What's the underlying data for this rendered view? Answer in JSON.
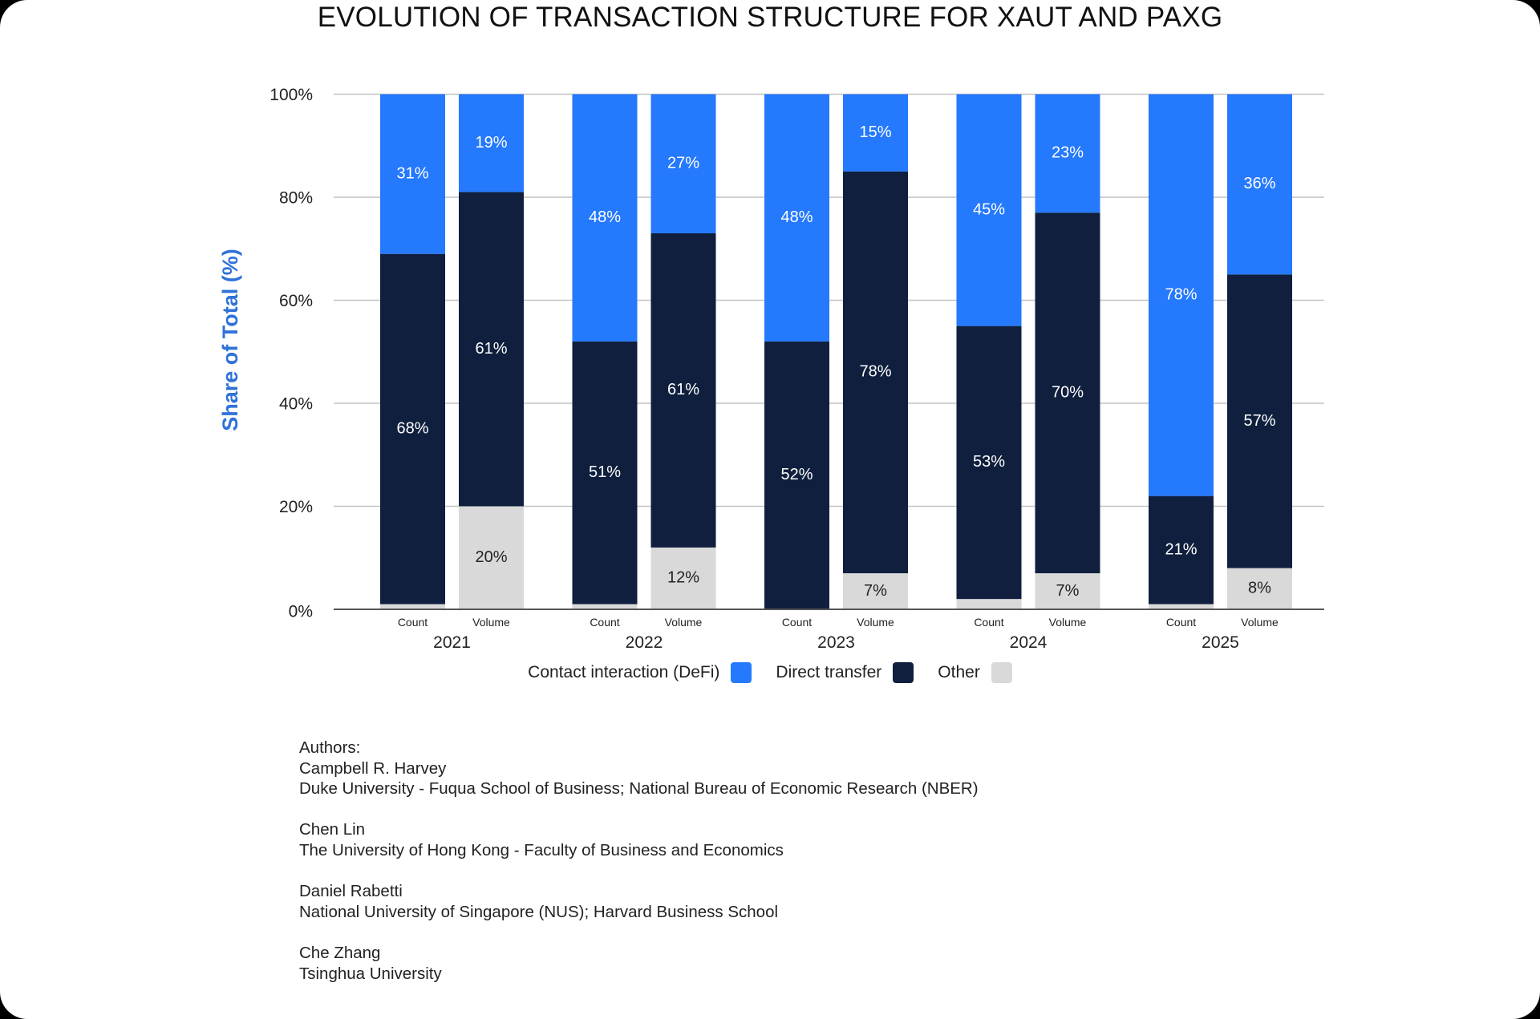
{
  "chart_data": {
    "type": "bar",
    "stacked": true,
    "title": "EVOLUTION OF TRANSACTION STRUCTURE FOR XAUT AND PAXG",
    "ylabel": "Share of Total (%)",
    "xlabel": "",
    "ylim": [
      0,
      100
    ],
    "yticks": [
      "0%",
      "20%",
      "40%",
      "60%",
      "80%",
      "100%"
    ],
    "grid": true,
    "legend_position": "bottom",
    "years": [
      "2021",
      "2022",
      "2023",
      "2024",
      "2025"
    ],
    "sub_categories": [
      "Count",
      "Volume"
    ],
    "series": [
      {
        "name": "Contact interaction (DeFi)",
        "color": "#2479fd",
        "label_color": "#ffffff",
        "values": [
          [
            31,
            19
          ],
          [
            48,
            27
          ],
          [
            48,
            15
          ],
          [
            45,
            23
          ],
          [
            78,
            36
          ]
        ]
      },
      {
        "name": "Direct transfer",
        "color": "#0f1f3d",
        "label_color": "#ffffff",
        "values": [
          [
            68,
            61
          ],
          [
            51,
            61
          ],
          [
            52,
            78
          ],
          [
            53,
            70
          ],
          [
            21,
            57
          ]
        ]
      },
      {
        "name": "Other",
        "color": "#d9d9d9",
        "label_color": "#222222",
        "values": [
          [
            1,
            20
          ],
          [
            1,
            12
          ],
          [
            0,
            7
          ],
          [
            2,
            7
          ],
          [
            1,
            8
          ]
        ]
      }
    ]
  },
  "authors_heading": "Authors:",
  "authors": [
    {
      "name": "Campbell R. Harvey",
      "affiliation": "Duke University - Fuqua School of Business; National Bureau of Economic Research (NBER)"
    },
    {
      "name": "Chen Lin",
      "affiliation": "The University of Hong Kong - Faculty of Business and Economics"
    },
    {
      "name": "Daniel Rabetti",
      "affiliation": "National University of Singapore (NUS); Harvard Business School"
    },
    {
      "name": "Che Zhang",
      "affiliation": "Tsinghua University"
    }
  ]
}
